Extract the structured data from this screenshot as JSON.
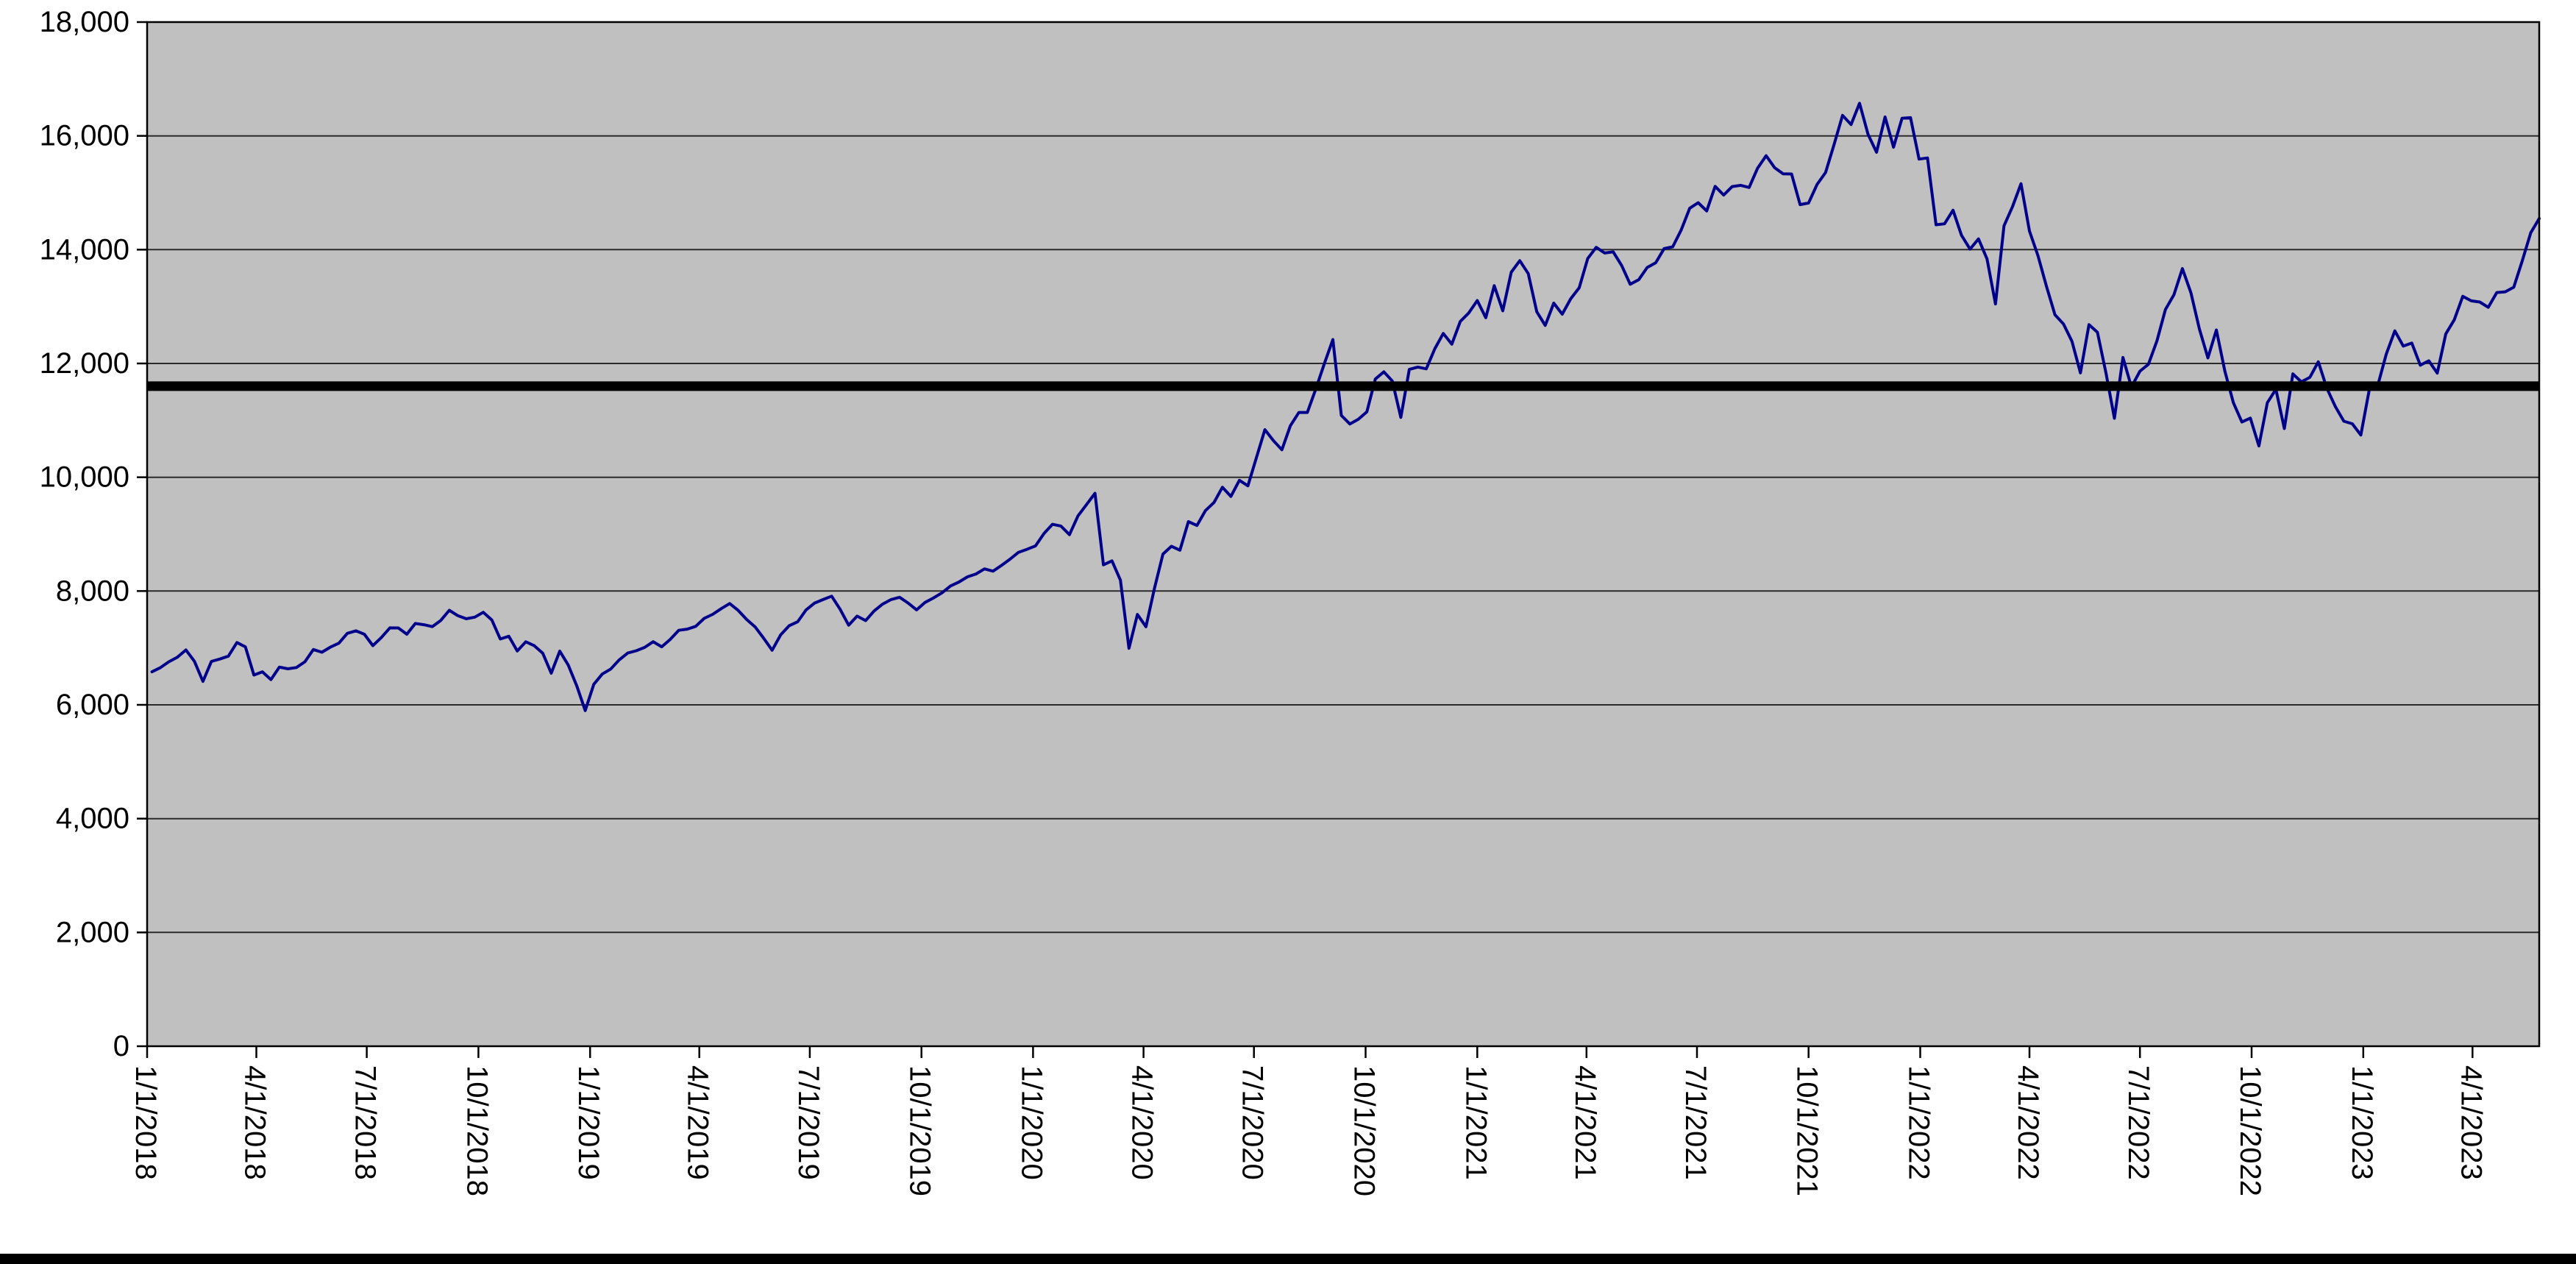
{
  "chart_data": {
    "type": "line",
    "legend": "none",
    "plot_background": "#c0c0c0",
    "gridline_color": "#2a2a2a",
    "axis_color": "#000000",
    "page_background": "#ffffff",
    "bottom_bar_color": "#000000",
    "ylim": [
      0,
      18000
    ],
    "y_ticks": {
      "values": [
        0,
        2000,
        4000,
        6000,
        8000,
        10000,
        12000,
        14000,
        16000,
        18000
      ],
      "labels": [
        "0",
        "2,000",
        "4,000",
        "6,000",
        "8,000",
        "10,000",
        "12,000",
        "14,000",
        "16,000",
        "18,000"
      ]
    },
    "x_axis_start": "1/1/2018",
    "x_tick_labels": [
      "1/1/2018",
      "4/1/2018",
      "7/1/2018",
      "10/1/2018",
      "1/1/2019",
      "4/1/2019",
      "7/1/2019",
      "10/1/2019",
      "1/1/2020",
      "4/1/2020",
      "7/1/2020",
      "10/1/2020",
      "1/1/2021",
      "4/1/2021",
      "7/1/2021",
      "10/1/2021",
      "1/1/2022",
      "4/1/2022",
      "7/1/2022",
      "10/1/2022",
      "1/1/2023",
      "4/1/2023"
    ],
    "reference_line": {
      "value": 11600,
      "color": "#000000"
    },
    "series": [
      {
        "name": "index-level",
        "color": "#00008B",
        "start_date": "1/5/2018",
        "interval_days": 7,
        "values": [
          6581,
          6654,
          6758,
          6838,
          6965,
          6765,
          6413,
          6763,
          6805,
          6856,
          7095,
          7019,
          6524,
          6581,
          6443,
          6663,
          6634,
          6655,
          6757,
          6973,
          6924,
          7014,
          7084,
          7257,
          7301,
          7242,
          7041,
          7182,
          7352,
          7351,
          7242,
          7430,
          7408,
          7374,
          7485,
          7662,
          7567,
          7513,
          7541,
          7627,
          7492,
          7157,
          7205,
          6947,
          7108,
          7040,
          6906,
          6556,
          6944,
          6700,
          6333,
          5899,
          6360,
          6540,
          6630,
          6790,
          6910,
          6950,
          7010,
          7110,
          7020,
          7150,
          7310,
          7330,
          7380,
          7520,
          7590,
          7690,
          7780,
          7660,
          7500,
          7370,
          7170,
          6960,
          7230,
          7390,
          7460,
          7670,
          7790,
          7850,
          7910,
          7680,
          7400,
          7560,
          7480,
          7650,
          7770,
          7850,
          7890,
          7790,
          7670,
          7800,
          7880,
          7970,
          8090,
          8160,
          8250,
          8300,
          8390,
          8350,
          8450,
          8560,
          8680,
          8733,
          8793,
          9011,
          9173,
          9141,
          8991,
          9321,
          9519,
          9718,
          8461,
          8530,
          8191,
          6994,
          7588,
          7373,
          8044,
          8650,
          8787,
          8718,
          9220,
          9152,
          9413,
          9555,
          9824,
          9663,
          9946,
          9849,
          10342,
          10836,
          10645,
          10483,
          10905,
          11139,
          11139,
          11555,
          11996,
          12420,
          11087,
          10936,
          11018,
          11151,
          11726,
          11852,
          11692,
          11052,
          11895,
          11937,
          11906,
          12258,
          12528,
          12339,
          12738,
          12888,
          13106,
          12804,
          13367,
          12925,
          13603,
          13807,
          13580,
          12909,
          12669,
          13060,
          12867,
          13138,
          13330,
          13845,
          14041,
          13941,
          13961,
          13719,
          13393,
          13471,
          13686,
          13770,
          14020,
          14049,
          14345,
          14727,
          14826,
          14681,
          15112,
          14960,
          15109,
          15131,
          15093,
          15432,
          15652,
          15441,
          15333,
          15330,
          14792,
          14820,
          15147,
          15355,
          15850,
          16360,
          16199,
          16573,
          16025,
          15713,
          16332,
          15801,
          16310,
          16320,
          15592,
          15611,
          14438,
          14454,
          14694,
          14253,
          14009,
          14189,
          13837,
          13046,
          14420,
          14754,
          15159,
          14328,
          13893,
          13357,
          12855,
          12694,
          12388,
          11835,
          12681,
          12548,
          11833,
          11037,
          12105,
          11586,
          11864,
          11984,
          12397,
          12947,
          13208,
          13667,
          13243,
          12606,
          12098,
          12588,
          11861,
          11311,
          10971,
          11039,
          10550,
          11310,
          11546,
          10857,
          11817,
          11677,
          11756,
          12030,
          11564,
          11244,
          10985,
          10940,
          10742,
          11541,
          11619,
          12166,
          12573,
          12305,
          12358,
          11969,
          12046,
          11830,
          12520,
          12767,
          13181,
          13100,
          13080,
          12987,
          13246,
          13259,
          13340,
          13803,
          14298,
          14547
        ]
      }
    ]
  }
}
